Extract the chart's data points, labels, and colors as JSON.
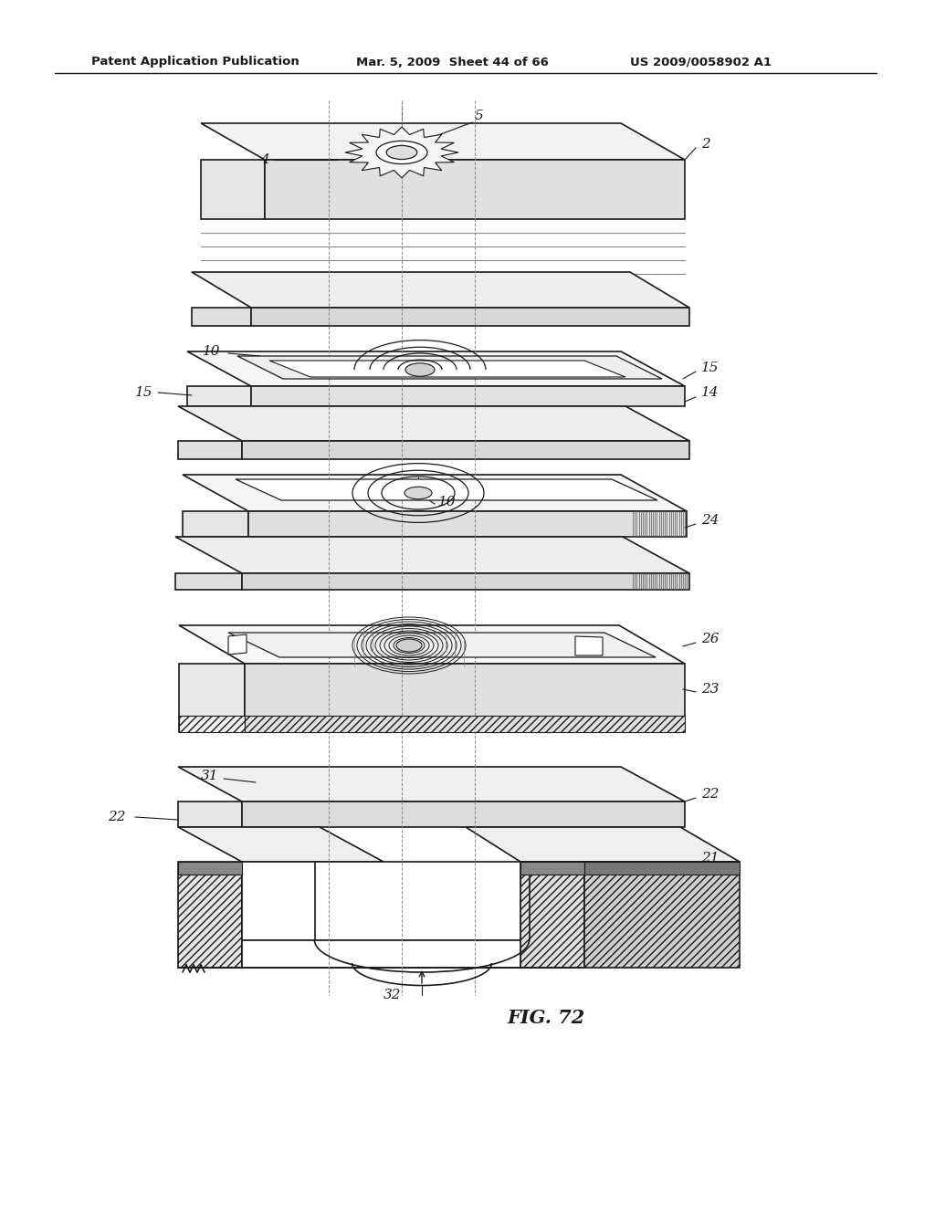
{
  "header_left": "Patent Application Publication",
  "header_mid": "Mar. 5, 2009  Sheet 44 of 66",
  "header_right": "US 2009/0058902 A1",
  "figure_label": "FIG. 72",
  "bg_color": "#ffffff",
  "lc": "#1a1a1a",
  "lw_main": 1.2,
  "lw_thin": 0.7,
  "lw_thick": 1.6,
  "fig_width": 10.24,
  "fig_height": 13.2,
  "dpi": 100
}
